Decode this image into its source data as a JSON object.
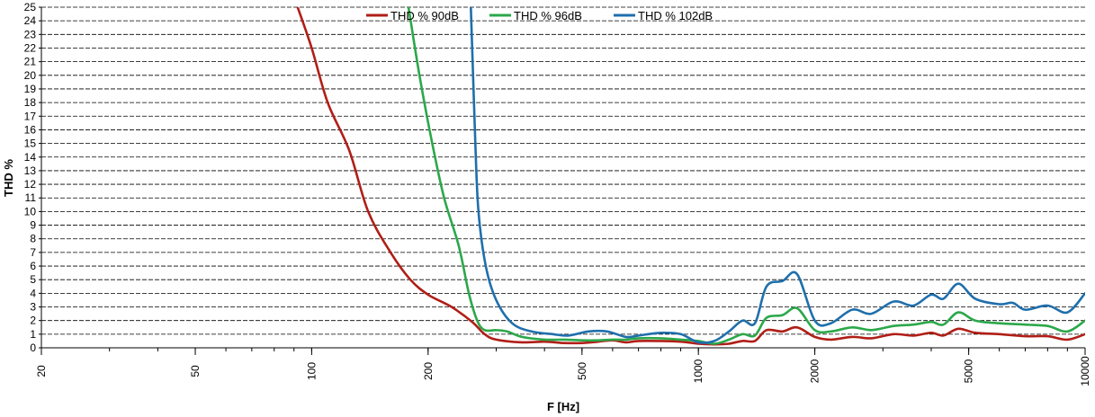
{
  "chart_data": {
    "type": "line",
    "xlabel": "F [Hz]",
    "ylabel": "THD %",
    "x_scale": "log",
    "xlim": [
      20,
      10000
    ],
    "ylim": [
      0,
      25
    ],
    "x_ticks": [
      20,
      50,
      100,
      200,
      500,
      1000,
      2000,
      5000,
      10000
    ],
    "x_tick_labels": [
      "20",
      "50",
      "100",
      "200",
      "500",
      "1000",
      "2000",
      "5000",
      "10000"
    ],
    "y_ticks": [
      0,
      1,
      2,
      3,
      4,
      5,
      6,
      7,
      8,
      9,
      10,
      11,
      12,
      13,
      14,
      15,
      16,
      17,
      18,
      19,
      20,
      21,
      22,
      23,
      24,
      25
    ],
    "y_tick_labels": [
      "0",
      "1",
      "2",
      "3",
      "4",
      "5",
      "6",
      "7",
      "8",
      "9",
      "10",
      "11",
      "12",
      "13",
      "14",
      "15",
      "16",
      "17",
      "18",
      "19",
      "20",
      "21",
      "22",
      "23",
      "24",
      "25"
    ],
    "grid": "horizontal dashed",
    "legend_position": "top-center",
    "series": [
      {
        "name": "THD % 90dB",
        "color": "#b01e17",
        "points": [
          [
            92,
            25
          ],
          [
            100,
            22
          ],
          [
            110,
            18
          ],
          [
            125,
            14.5
          ],
          [
            140,
            10
          ],
          [
            160,
            7
          ],
          [
            180,
            5
          ],
          [
            200,
            3.9
          ],
          [
            230,
            3
          ],
          [
            260,
            1.9
          ],
          [
            280,
            1
          ],
          [
            300,
            0.6
          ],
          [
            350,
            0.4
          ],
          [
            400,
            0.45
          ],
          [
            450,
            0.35
          ],
          [
            500,
            0.35
          ],
          [
            550,
            0.45
          ],
          [
            600,
            0.55
          ],
          [
            650,
            0.4
          ],
          [
            700,
            0.5
          ],
          [
            800,
            0.5
          ],
          [
            900,
            0.45
          ],
          [
            1000,
            0.3
          ],
          [
            1100,
            0.25
          ],
          [
            1200,
            0.3
          ],
          [
            1300,
            0.5
          ],
          [
            1400,
            0.5
          ],
          [
            1500,
            1.3
          ],
          [
            1650,
            1.2
          ],
          [
            1800,
            1.5
          ],
          [
            2000,
            0.8
          ],
          [
            2200,
            0.6
          ],
          [
            2500,
            0.8
          ],
          [
            2800,
            0.7
          ],
          [
            3200,
            1
          ],
          [
            3600,
            0.9
          ],
          [
            4000,
            1.1
          ],
          [
            4300,
            0.9
          ],
          [
            4700,
            1.4
          ],
          [
            5200,
            1.1
          ],
          [
            6000,
            1
          ],
          [
            7000,
            0.85
          ],
          [
            8000,
            0.85
          ],
          [
            9000,
            0.6
          ],
          [
            10000,
            1
          ]
        ]
      },
      {
        "name": "THD % 96dB",
        "color": "#2ba84a",
        "points": [
          [
            178,
            25
          ],
          [
            190,
            20
          ],
          [
            205,
            15
          ],
          [
            220,
            11
          ],
          [
            240,
            7.5
          ],
          [
            255,
            4
          ],
          [
            268,
            2
          ],
          [
            280,
            1.3
          ],
          [
            300,
            1.3
          ],
          [
            320,
            1.2
          ],
          [
            350,
            0.8
          ],
          [
            400,
            0.6
          ],
          [
            450,
            0.6
          ],
          [
            500,
            0.55
          ],
          [
            550,
            0.55
          ],
          [
            600,
            0.6
          ],
          [
            650,
            0.6
          ],
          [
            700,
            0.7
          ],
          [
            800,
            0.7
          ],
          [
            900,
            0.6
          ],
          [
            1000,
            0.5
          ],
          [
            1100,
            0.3
          ],
          [
            1200,
            0.6
          ],
          [
            1300,
            1
          ],
          [
            1400,
            0.9
          ],
          [
            1500,
            2.2
          ],
          [
            1650,
            2.4
          ],
          [
            1800,
            2.9
          ],
          [
            2000,
            1.3
          ],
          [
            2200,
            1.2
          ],
          [
            2500,
            1.5
          ],
          [
            2800,
            1.3
          ],
          [
            3200,
            1.6
          ],
          [
            3600,
            1.7
          ],
          [
            4000,
            1.9
          ],
          [
            4300,
            1.7
          ],
          [
            4700,
            2.6
          ],
          [
            5200,
            2
          ],
          [
            6000,
            1.8
          ],
          [
            7000,
            1.7
          ],
          [
            8000,
            1.6
          ],
          [
            9000,
            1.2
          ],
          [
            10000,
            2
          ]
        ]
      },
      {
        "name": "THD % 102dB",
        "color": "#1f6fac",
        "points": [
          [
            258,
            25
          ],
          [
            265,
            15
          ],
          [
            270,
            10
          ],
          [
            282,
            6
          ],
          [
            300,
            3.5
          ],
          [
            330,
            1.8
          ],
          [
            370,
            1.2
          ],
          [
            420,
            1
          ],
          [
            460,
            0.9
          ],
          [
            520,
            1.2
          ],
          [
            580,
            1.2
          ],
          [
            650,
            0.8
          ],
          [
            700,
            0.9
          ],
          [
            800,
            1.1
          ],
          [
            900,
            1
          ],
          [
            1000,
            0.4
          ],
          [
            1100,
            0.5
          ],
          [
            1200,
            1.2
          ],
          [
            1300,
            2
          ],
          [
            1400,
            1.8
          ],
          [
            1500,
            4.5
          ],
          [
            1650,
            4.9
          ],
          [
            1800,
            5.4
          ],
          [
            2000,
            2
          ],
          [
            2200,
            1.8
          ],
          [
            2500,
            2.8
          ],
          [
            2800,
            2.5
          ],
          [
            3200,
            3.4
          ],
          [
            3600,
            3.1
          ],
          [
            4000,
            3.9
          ],
          [
            4300,
            3.6
          ],
          [
            4700,
            4.7
          ],
          [
            5200,
            3.6
          ],
          [
            6000,
            3.2
          ],
          [
            6500,
            3.3
          ],
          [
            7000,
            2.8
          ],
          [
            8000,
            3.1
          ],
          [
            9000,
            2.6
          ],
          [
            10000,
            4
          ]
        ]
      }
    ]
  }
}
